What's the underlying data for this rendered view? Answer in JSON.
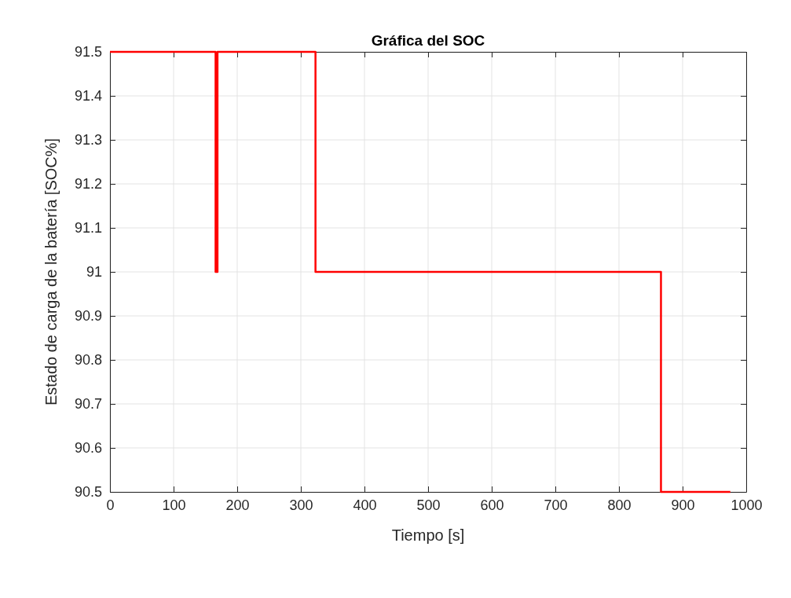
{
  "chart_data": {
    "type": "step",
    "title": "Gráfica del SOC",
    "xlabel": "Tiempo [s]",
    "ylabel": "Estado de carga de la batería [SOC%]",
    "x": [
      0,
      166,
      169,
      323,
      866,
      975
    ],
    "series": [
      {
        "color": "#ff0000",
        "values": [
          91.5,
          91,
          91.5,
          91,
          90.5,
          90.5
        ]
      }
    ],
    "xlim": [
      0,
      1000
    ],
    "xticks": [
      0,
      100,
      200,
      300,
      400,
      500,
      600,
      700,
      800,
      900,
      1000
    ],
    "ylim": [
      90.5,
      91.5
    ],
    "yticks": [
      90.5,
      90.6,
      90.7,
      90.8,
      90.9,
      91,
      91.1,
      91.2,
      91.3,
      91.4,
      91.5
    ],
    "grid": true
  }
}
